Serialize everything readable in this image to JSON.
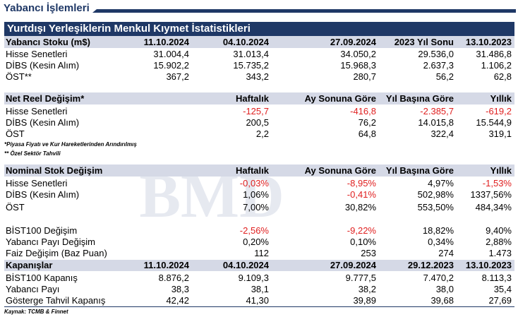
{
  "page_title": "Yabancı İşlemleri",
  "table_title": "Yurtdışı Yerleşiklerin Menkul Kıymet İstatistikleri",
  "stock": {
    "header": [
      "Yabancı Stoku (m$)",
      "11.10.2024",
      "04.10.2024",
      "27.09.2024",
      "2023 Yıl Sonu",
      "13.10.2023"
    ],
    "rows": [
      [
        "Hisse Senetleri",
        "31.004,4",
        "31.013,4",
        "34.050,2",
        "29.536,0",
        "31.486,8"
      ],
      [
        "DİBS (Kesin Alım)",
        "15.902,2",
        "15.735,2",
        "15.968,3",
        "2.637,3",
        "1.106,2"
      ],
      [
        "ÖST**",
        "367,2",
        "343,2",
        "280,7",
        "56,2",
        "62,8"
      ]
    ]
  },
  "net_real": {
    "header": [
      "Net Reel Değişim*",
      "Haftalık",
      "Ay Sonuna Göre",
      "Yıl Başına Göre",
      "Yıllık"
    ],
    "rows": [
      [
        "Hisse Senetleri",
        "-125,7",
        "-416,8",
        "-2.385,7",
        "-619,2"
      ],
      [
        "DİBS (Kesin Alım)",
        "200,5",
        "76,2",
        "14.015,8",
        "15.544,9"
      ],
      [
        "ÖST",
        "2,2",
        "64,8",
        "322,4",
        "319,1"
      ]
    ]
  },
  "notes": [
    "*Piyasa Fiyatı ve Kur Hareketlerinden Arındırılmış",
    "** Özel Sektör Tahvili"
  ],
  "nominal": {
    "header": [
      "Nominal Stok Değişim",
      "Haftalık",
      "Ay Sonuna Göre",
      "Yıl Başına Göre",
      "Yıllık"
    ],
    "rows": [
      [
        "Hisse Senetleri",
        "-0,03%",
        "-8,95%",
        "4,97%",
        "-1,53%"
      ],
      [
        "DİBS (Kesin Alım)",
        "1,06%",
        "-0,41%",
        "502,98%",
        "1337,56%"
      ],
      [
        "ÖST",
        "7,00%",
        "30,82%",
        "553,50%",
        "484,34%"
      ]
    ]
  },
  "bist": {
    "rows": [
      [
        "BİST100 Değişim",
        "-2,56%",
        "-9,22%",
        "18,82%",
        "9,40%"
      ],
      [
        "Yabancı Payı Değişim",
        "0,20%",
        "0,10%",
        "0,34%",
        "2,88%"
      ],
      [
        "Faiz Değişim (Baz Puan)",
        "112",
        "253",
        "274",
        "1.473"
      ]
    ]
  },
  "closing": {
    "header": [
      "Kapanışlar",
      "11.10.2024",
      "04.10.2024",
      "27.09.2024",
      "29.12.2023",
      "13.10.2023"
    ],
    "rows": [
      [
        "BİST100 Kapanış",
        "8.876,2",
        "9.109,3",
        "9.777,5",
        "7.470,2",
        "8.113,3"
      ],
      [
        "Yabancı Payı",
        "38,3",
        "38,1",
        "38,2",
        "38,0",
        "35,4"
      ],
      [
        "Gösterge Tahvil Kapanış",
        "42,42",
        "41,30",
        "39,89",
        "39,68",
        "27,69"
      ]
    ]
  },
  "source": "Kaynak: TCMB & Finnet",
  "watermark_text": "BMD",
  "colors": {
    "header_navy": "#1f3866",
    "section_band": "#d5d9e6",
    "negative": "#e02020"
  }
}
